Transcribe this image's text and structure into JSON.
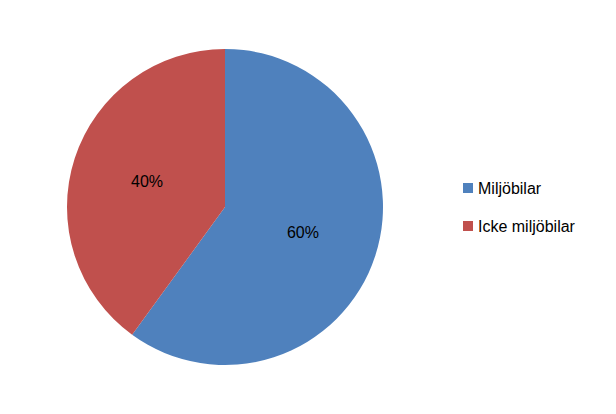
{
  "chart_data": {
    "type": "pie",
    "categories": [
      "Miljöbilar",
      "Icke miljöbilar"
    ],
    "values": [
      60,
      40
    ],
    "value_labels": [
      "60%",
      "40%"
    ],
    "colors": [
      "#4F81BD",
      "#C0504D"
    ],
    "data_labels": true,
    "legend": "right"
  }
}
